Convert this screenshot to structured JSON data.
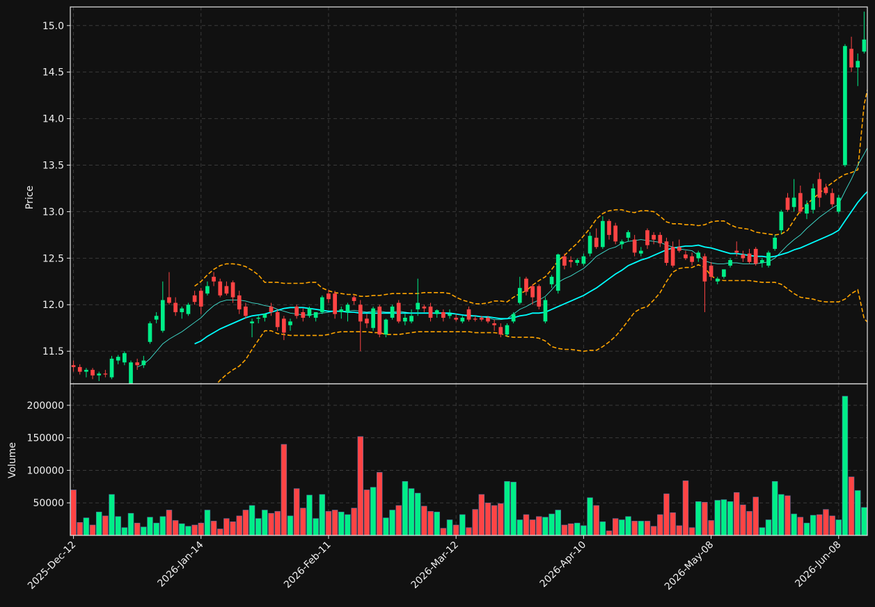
{
  "chart_data": {
    "type": "candlestick",
    "colors": {
      "background": "#111111",
      "up": "#00ee88",
      "down": "#ff4444",
      "bollinger": "#ffa500",
      "ma_short": "#40e0d0",
      "ma_long": "#00ffff",
      "grid": "#3a3a3a",
      "frame": "#e6e6e6"
    },
    "grid": true,
    "start_date": "2025-12-12",
    "x_tick_labels": [
      "2025-Dec-12",
      "2026-Jan-14",
      "2026-Feb-11",
      "2026-Mar-12",
      "2026-Apr-10",
      "2026-May-08",
      "2026-Jun-08"
    ],
    "x_tick_index": [
      0,
      20,
      40,
      60,
      80,
      100,
      120
    ],
    "price_panel": {
      "ylabel": "Price",
      "ylim": [
        11.15,
        15.2
      ],
      "yticks": [
        11.5,
        12.0,
        12.5,
        13.0,
        13.5,
        14.0,
        14.5,
        15.0
      ],
      "ytick_labels": [
        "11.5",
        "12.0",
        "12.5",
        "13.0",
        "13.5",
        "14.0",
        "14.5",
        "15.0"
      ]
    },
    "volume_panel": {
      "ylabel": "Volume",
      "ylim": [
        0,
        233000
      ],
      "yticks": [
        50000,
        100000,
        150000,
        200000
      ],
      "ytick_labels": [
        "50000",
        "100000",
        "150000",
        "200000"
      ]
    },
    "candles": [
      [
        11.35,
        11.4,
        11.28,
        11.33
      ],
      [
        11.33,
        11.36,
        11.25,
        11.28
      ],
      [
        11.28,
        11.32,
        11.22,
        11.3
      ],
      [
        11.3,
        11.32,
        11.2,
        11.24
      ],
      [
        11.24,
        11.28,
        11.18,
        11.26
      ],
      [
        11.26,
        11.3,
        11.22,
        11.25
      ],
      [
        11.22,
        11.45,
        11.2,
        11.42
      ],
      [
        11.4,
        11.46,
        11.36,
        11.44
      ],
      [
        11.38,
        11.5,
        11.35,
        11.48
      ],
      [
        11.15,
        11.4,
        11.13,
        11.38
      ],
      [
        11.38,
        11.42,
        11.3,
        11.35
      ],
      [
        11.35,
        11.45,
        11.32,
        11.4
      ],
      [
        11.6,
        11.82,
        11.58,
        11.8
      ],
      [
        11.84,
        11.92,
        11.8,
        11.88
      ],
      [
        11.72,
        12.25,
        11.7,
        12.05
      ],
      [
        12.08,
        12.35,
        12.0,
        12.02
      ],
      [
        12.02,
        12.08,
        11.88,
        11.92
      ],
      [
        11.92,
        11.98,
        11.85,
        11.96
      ],
      [
        11.9,
        12.02,
        11.88,
        12.0
      ],
      [
        12.1,
        12.15,
        12.0,
        12.03
      ],
      [
        12.15,
        12.18,
        11.9,
        11.98
      ],
      [
        12.12,
        12.25,
        12.1,
        12.2
      ],
      [
        12.3,
        12.35,
        12.2,
        12.25
      ],
      [
        12.25,
        12.28,
        12.08,
        12.1
      ],
      [
        12.2,
        12.25,
        12.1,
        12.12
      ],
      [
        12.24,
        12.26,
        12.02,
        12.08
      ],
      [
        12.1,
        12.15,
        11.9,
        11.95
      ],
      [
        11.98,
        12.02,
        11.85,
        11.88
      ],
      [
        11.8,
        11.85,
        11.65,
        11.82
      ],
      [
        11.85,
        11.88,
        11.8,
        11.86
      ],
      [
        11.86,
        11.9,
        11.82,
        11.9
      ],
      [
        11.98,
        12.02,
        11.88,
        11.92
      ],
      [
        11.92,
        11.95,
        11.72,
        11.76
      ],
      [
        11.85,
        11.88,
        11.62,
        11.7
      ],
      [
        11.78,
        11.85,
        11.72,
        11.82
      ],
      [
        11.98,
        12.0,
        11.85,
        11.88
      ],
      [
        11.92,
        11.96,
        11.82,
        11.86
      ],
      [
        11.88,
        11.98,
        11.86,
        11.96
      ],
      [
        11.86,
        11.9,
        11.82,
        11.92
      ],
      [
        11.92,
        12.1,
        11.9,
        12.08
      ],
      [
        12.12,
        12.16,
        12.02,
        12.06
      ],
      [
        12.12,
        12.15,
        11.85,
        11.9
      ],
      [
        11.92,
        11.98,
        11.85,
        11.95
      ],
      [
        11.92,
        12.02,
        11.82,
        12.0
      ],
      [
        12.08,
        12.1,
        12.0,
        12.04
      ],
      [
        12.0,
        12.05,
        11.5,
        11.82
      ],
      [
        11.85,
        11.9,
        11.75,
        11.8
      ],
      [
        11.75,
        11.98,
        11.72,
        11.96
      ],
      [
        11.98,
        12.0,
        11.65,
        11.68
      ],
      [
        11.68,
        11.85,
        11.65,
        11.84
      ],
      [
        11.86,
        12.0,
        11.84,
        11.98
      ],
      [
        12.02,
        12.05,
        11.8,
        11.82
      ],
      [
        11.82,
        11.9,
        11.78,
        11.86
      ],
      [
        11.82,
        11.95,
        11.8,
        11.88
      ],
      [
        11.95,
        12.28,
        11.88,
        12.02
      ],
      [
        11.98,
        12.0,
        11.92,
        11.96
      ],
      [
        11.98,
        12.02,
        11.82,
        11.86
      ],
      [
        11.9,
        11.95,
        11.86,
        11.94
      ],
      [
        11.92,
        11.95,
        11.82,
        11.86
      ],
      [
        11.88,
        11.95,
        11.85,
        11.9
      ],
      [
        11.86,
        11.9,
        11.82,
        11.84
      ],
      [
        11.82,
        11.88,
        11.8,
        11.86
      ],
      [
        11.95,
        11.98,
        11.82,
        11.84
      ],
      [
        11.85,
        11.88,
        11.82,
        11.84
      ],
      [
        11.86,
        11.88,
        11.82,
        11.84
      ],
      [
        11.86,
        11.88,
        11.8,
        11.82
      ],
      [
        11.8,
        11.84,
        11.72,
        11.78
      ],
      [
        11.76,
        11.8,
        11.65,
        11.68
      ],
      [
        11.68,
        11.8,
        11.66,
        11.78
      ],
      [
        11.82,
        11.92,
        11.8,
        11.9
      ],
      [
        12.02,
        12.3,
        12.0,
        12.18
      ],
      [
        12.28,
        12.3,
        12.1,
        12.14
      ],
      [
        12.2,
        12.22,
        12.0,
        12.08
      ],
      [
        12.2,
        12.22,
        11.95,
        11.98
      ],
      [
        11.82,
        12.08,
        11.8,
        12.05
      ],
      [
        12.22,
        12.32,
        12.18,
        12.3
      ],
      [
        12.15,
        12.55,
        12.12,
        12.54
      ],
      [
        12.52,
        12.55,
        12.38,
        12.42
      ],
      [
        12.48,
        12.52,
        12.4,
        12.46
      ],
      [
        12.45,
        12.5,
        12.42,
        12.48
      ],
      [
        12.44,
        12.55,
        12.42,
        12.52
      ],
      [
        12.55,
        12.78,
        12.52,
        12.74
      ],
      [
        12.72,
        12.82,
        12.6,
        12.62
      ],
      [
        12.62,
        12.95,
        12.6,
        12.9
      ],
      [
        12.9,
        12.92,
        12.7,
        12.75
      ],
      [
        12.85,
        12.88,
        12.65,
        12.68
      ],
      [
        12.65,
        12.7,
        12.6,
        12.68
      ],
      [
        12.72,
        12.8,
        12.68,
        12.78
      ],
      [
        12.7,
        12.75,
        12.52,
        12.56
      ],
      [
        12.55,
        12.62,
        12.52,
        12.58
      ],
      [
        12.8,
        12.82,
        12.6,
        12.64
      ],
      [
        12.75,
        12.78,
        12.65,
        12.7
      ],
      [
        12.75,
        12.78,
        12.62,
        12.66
      ],
      [
        12.68,
        12.72,
        12.42,
        12.45
      ],
      [
        12.62,
        12.68,
        12.4,
        12.42
      ],
      [
        12.62,
        12.7,
        12.56,
        12.58
      ],
      [
        12.54,
        12.58,
        12.48,
        12.5
      ],
      [
        12.52,
        12.56,
        12.42,
        12.46
      ],
      [
        12.5,
        12.58,
        12.46,
        12.56
      ],
      [
        12.52,
        12.55,
        11.92,
        12.25
      ],
      [
        12.42,
        12.46,
        12.26,
        12.3
      ],
      [
        12.25,
        12.3,
        12.22,
        12.28
      ],
      [
        12.3,
        12.38,
        12.28,
        12.38
      ],
      [
        12.42,
        12.5,
        12.4,
        12.48
      ],
      [
        12.58,
        12.68,
        12.52,
        12.56
      ],
      [
        12.54,
        12.58,
        12.46,
        12.5
      ],
      [
        12.55,
        12.6,
        12.44,
        12.46
      ],
      [
        12.6,
        12.62,
        12.42,
        12.44
      ],
      [
        12.45,
        12.5,
        12.4,
        12.48
      ],
      [
        12.42,
        12.58,
        12.4,
        12.56
      ],
      [
        12.6,
        12.75,
        12.58,
        12.72
      ],
      [
        12.8,
        13.02,
        12.76,
        13.0
      ],
      [
        13.15,
        13.2,
        13.0,
        13.02
      ],
      [
        13.05,
        13.35,
        13.0,
        13.15
      ],
      [
        13.2,
        13.28,
        12.98,
        13.0
      ],
      [
        12.98,
        13.12,
        12.92,
        13.08
      ],
      [
        13.02,
        13.3,
        12.98,
        13.25
      ],
      [
        13.35,
        13.42,
        13.05,
        13.15
      ],
      [
        13.26,
        13.3,
        13.18,
        13.2
      ],
      [
        13.2,
        13.25,
        13.05,
        13.08
      ],
      [
        13.0,
        13.18,
        12.98,
        13.15
      ],
      [
        13.5,
        14.8,
        13.48,
        14.78
      ],
      [
        14.75,
        14.88,
        14.5,
        14.55
      ],
      [
        14.55,
        14.7,
        14.35,
        14.62
      ],
      [
        14.72,
        15.15,
        14.7,
        14.85
      ]
    ],
    "volumes": [
      70000,
      20000,
      27000,
      16000,
      36000,
      30000,
      63000,
      29000,
      12000,
      34000,
      19000,
      13000,
      28000,
      19000,
      29000,
      39000,
      23000,
      18000,
      14000,
      16000,
      19000,
      39000,
      22000,
      10000,
      26000,
      21000,
      30000,
      39000,
      46000,
      26000,
      39000,
      34000,
      37000,
      140000,
      30000,
      72000,
      42000,
      62000,
      26000,
      63000,
      37000,
      39000,
      36000,
      32000,
      42000,
      152000,
      70000,
      74000,
      97000,
      27000,
      39000,
      46000,
      83000,
      72000,
      65000,
      45000,
      37000,
      36000,
      11000,
      24000,
      16000,
      32000,
      12000,
      40000,
      63000,
      50000,
      46000,
      49000,
      83000,
      82000,
      24000,
      32000,
      24000,
      29000,
      28000,
      33000,
      39000,
      16000,
      18000,
      19000,
      15000,
      58000,
      46000,
      21000,
      7000,
      26000,
      24000,
      29000,
      22000,
      22000,
      22000,
      14000,
      32000,
      64000,
      35000,
      15000,
      84000,
      12000,
      52000,
      51000,
      23000,
      54000,
      55000,
      52000,
      66000,
      47000,
      37000,
      59000,
      12000,
      24000,
      83000,
      63000,
      61000,
      33000,
      28000,
      19000,
      31000,
      32000,
      40000,
      30000,
      24000,
      214000,
      90000,
      69000,
      43000
    ],
    "bollinger_upper": [
      null,
      null,
      null,
      null,
      null,
      null,
      null,
      null,
      null,
      null,
      null,
      null,
      null,
      null,
      null,
      null,
      null,
      null,
      null,
      12.2,
      12.25,
      12.32,
      12.38,
      12.42,
      12.44,
      12.44,
      12.43,
      12.41,
      12.37,
      12.32,
      12.24,
      12.24,
      12.24,
      12.23,
      12.23,
      12.23,
      12.23,
      12.24,
      12.24,
      12.18,
      12.15,
      12.13,
      12.12,
      12.11,
      12.11,
      12.09,
      12.09,
      12.1,
      12.1,
      12.11,
      12.12,
      12.12,
      12.12,
      12.12,
      12.12,
      12.13,
      12.13,
      12.13,
      12.13,
      12.12,
      12.08,
      12.05,
      12.03,
      12.01,
      12.01,
      12.02,
      12.04,
      12.04,
      12.03,
      12.08,
      12.12,
      12.15,
      12.21,
      12.26,
      12.3,
      12.38,
      12.47,
      12.53,
      12.6,
      12.66,
      12.74,
      12.82,
      12.92,
      12.98,
      13.01,
      13.02,
      13.02,
      13.0,
      12.99,
      13.01,
      13.01,
      13.0,
      12.95,
      12.89,
      12.87,
      12.87,
      12.86,
      12.86,
      12.85,
      12.86,
      12.89,
      12.9,
      12.9,
      12.86,
      12.83,
      12.82,
      12.81,
      12.78,
      12.77,
      12.76,
      12.75,
      12.76,
      12.8,
      12.91,
      13.01,
      13.08,
      13.14,
      13.2,
      13.26,
      13.31,
      13.36,
      13.4,
      13.42,
      13.45,
      14.15,
      14.46,
      14.66,
      14.78,
      14.9
    ],
    "bollinger_lower": [
      null,
      null,
      null,
      null,
      null,
      null,
      null,
      null,
      null,
      null,
      null,
      null,
      null,
      null,
      null,
      null,
      null,
      null,
      null,
      10.85,
      10.93,
      11.02,
      11.11,
      11.19,
      11.25,
      11.3,
      11.34,
      11.41,
      11.52,
      11.62,
      11.72,
      11.72,
      11.69,
      11.68,
      11.67,
      11.67,
      11.67,
      11.67,
      11.67,
      11.67,
      11.68,
      11.7,
      11.71,
      11.71,
      11.71,
      11.71,
      11.71,
      11.7,
      11.7,
      11.68,
      11.68,
      11.68,
      11.69,
      11.7,
      11.71,
      11.71,
      11.71,
      11.71,
      11.71,
      11.71,
      11.71,
      11.71,
      11.71,
      11.7,
      11.7,
      11.7,
      11.7,
      11.69,
      11.66,
      11.65,
      11.65,
      11.65,
      11.65,
      11.64,
      11.61,
      11.55,
      11.53,
      11.52,
      11.52,
      11.51,
      11.5,
      11.51,
      11.51,
      11.55,
      11.6,
      11.66,
      11.74,
      11.83,
      11.92,
      11.96,
      11.98,
      12.05,
      12.13,
      12.25,
      12.35,
      12.39,
      12.4,
      12.4,
      12.43,
      12.4,
      12.31,
      12.27,
      12.26,
      12.26,
      12.26,
      12.26,
      12.26,
      12.25,
      12.24,
      12.24,
      12.24,
      12.22,
      12.17,
      12.12,
      12.08,
      12.07,
      12.06,
      12.04,
      12.03,
      12.03,
      12.03,
      12.06,
      12.12,
      12.16,
      11.85,
      11.78,
      11.75,
      11.72,
      11.7
    ],
    "ma_short": [
      null,
      null,
      null,
      null,
      null,
      null,
      null,
      null,
      null,
      null,
      11.33,
      11.36,
      11.42,
      11.5,
      11.58,
      11.63,
      11.67,
      11.71,
      11.76,
      11.81,
      11.86,
      11.93,
      11.99,
      12.03,
      12.05,
      12.05,
      12.05,
      12.04,
      12.02,
      12.01,
      11.99,
      11.98,
      11.95,
      11.93,
      11.91,
      11.9,
      11.89,
      11.89,
      11.9,
      11.91,
      11.92,
      11.93,
      11.93,
      11.93,
      11.94,
      11.93,
      11.92,
      11.93,
      11.93,
      11.92,
      11.92,
      11.93,
      11.92,
      11.91,
      11.91,
      11.91,
      11.91,
      11.91,
      11.91,
      11.9,
      11.9,
      11.89,
      11.89,
      11.88,
      11.87,
      11.86,
      11.84,
      11.84,
      11.85,
      11.9,
      11.95,
      11.98,
      12.02,
      12.05,
      12.09,
      12.16,
      12.24,
      12.28,
      12.31,
      12.35,
      12.39,
      12.45,
      12.52,
      12.56,
      12.6,
      12.62,
      12.66,
      12.68,
      12.69,
      12.7,
      12.69,
      12.68,
      12.67,
      12.64,
      12.62,
      12.6,
      12.59,
      12.58,
      12.53,
      12.47,
      12.45,
      12.44,
      12.44,
      12.45,
      12.45,
      12.44,
      12.44,
      12.44,
      12.45,
      12.46,
      12.5,
      12.57,
      12.64,
      12.7,
      12.75,
      12.82,
      12.88,
      12.94,
      12.99,
      13.04,
      13.08,
      13.22,
      13.35,
      13.5,
      13.62,
      13.75
    ],
    "ma_long": [
      null,
      null,
      null,
      null,
      null,
      null,
      null,
      null,
      null,
      null,
      null,
      null,
      null,
      null,
      null,
      null,
      null,
      null,
      null,
      11.58,
      11.61,
      11.66,
      11.7,
      11.74,
      11.77,
      11.8,
      11.83,
      11.86,
      11.88,
      11.89,
      11.9,
      11.92,
      11.94,
      11.96,
      11.97,
      11.97,
      11.97,
      11.96,
      11.95,
      11.94,
      11.93,
      11.93,
      11.93,
      11.92,
      11.92,
      11.91,
      11.91,
      11.91,
      11.91,
      11.91,
      11.91,
      11.91,
      11.91,
      11.91,
      11.91,
      11.91,
      11.91,
      11.91,
      11.91,
      11.91,
      11.9,
      11.89,
      11.88,
      11.88,
      11.87,
      11.87,
      11.86,
      11.85,
      11.85,
      11.86,
      11.88,
      11.89,
      11.91,
      11.91,
      11.92,
      11.95,
      11.98,
      12.01,
      12.04,
      12.07,
      12.1,
      12.14,
      12.18,
      12.23,
      12.28,
      12.33,
      12.37,
      12.42,
      12.45,
      12.48,
      12.5,
      12.53,
      12.56,
      12.59,
      12.61,
      12.62,
      12.63,
      12.63,
      12.64,
      12.62,
      12.61,
      12.59,
      12.57,
      12.55,
      12.55,
      12.54,
      12.53,
      12.52,
      12.52,
      12.51,
      12.52,
      12.54,
      12.56,
      12.59,
      12.61,
      12.64,
      12.67,
      12.7,
      12.73,
      12.76,
      12.8,
      12.9,
      13.0,
      13.1,
      13.18,
      13.25
    ]
  }
}
